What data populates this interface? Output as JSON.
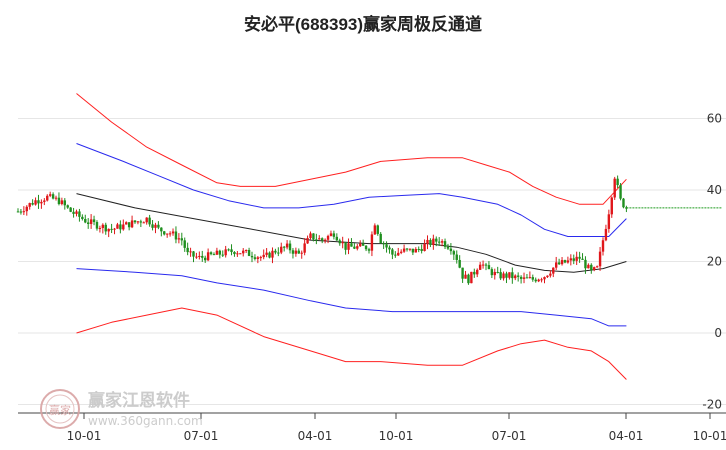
{
  "chart_data": {
    "type": "candlestick_with_channel",
    "title": "安必平(688393)赢家周极反通道",
    "y_ticks": [
      60,
      40,
      20,
      0,
      -20
    ],
    "ylim": [
      -20,
      60
    ],
    "x_ticks": [
      "10-01",
      "07-01",
      "04-01",
      "10-01",
      "07-01",
      "04-01",
      "10-01"
    ],
    "grid": "horizontal",
    "colors": {
      "up": "#e0161a",
      "down": "#1f8f1f",
      "outer_band": "#ff2020",
      "inner_band": "#2a2aee",
      "middle_line": "#222222",
      "last_price_line": "#1f9a1f",
      "watermark": "#c7c7c7"
    },
    "last_price": 35,
    "price_path": [
      [
        0,
        34
      ],
      [
        3,
        37
      ],
      [
        5,
        38
      ],
      [
        7,
        37
      ],
      [
        9,
        34
      ],
      [
        12,
        31
      ],
      [
        16,
        29
      ],
      [
        18,
        30
      ],
      [
        20,
        31
      ],
      [
        22,
        32
      ],
      [
        24,
        29
      ],
      [
        26,
        28
      ],
      [
        28,
        26
      ],
      [
        29,
        22
      ],
      [
        31,
        21
      ],
      [
        34,
        22
      ],
      [
        37,
        23
      ],
      [
        40,
        22
      ],
      [
        42,
        21
      ],
      [
        44,
        23
      ],
      [
        46,
        24
      ],
      [
        48,
        22
      ],
      [
        50,
        27
      ],
      [
        52,
        26
      ],
      [
        54,
        28
      ],
      [
        56,
        24
      ],
      [
        58,
        24
      ],
      [
        60,
        24
      ],
      [
        61,
        31
      ],
      [
        62,
        26
      ],
      [
        64,
        22
      ],
      [
        66,
        23
      ],
      [
        68,
        23
      ],
      [
        70,
        25
      ],
      [
        72,
        26
      ],
      [
        74,
        24
      ],
      [
        75,
        21
      ],
      [
        76,
        16
      ],
      [
        77,
        15
      ],
      [
        78,
        17
      ],
      [
        79,
        20
      ],
      [
        80,
        18
      ],
      [
        81,
        17
      ],
      [
        82,
        16
      ],
      [
        84,
        16
      ],
      [
        86,
        15
      ],
      [
        88,
        15
      ],
      [
        90,
        16
      ],
      [
        92,
        19
      ],
      [
        94,
        20
      ],
      [
        96,
        21
      ],
      [
        97,
        19
      ],
      [
        98,
        17
      ],
      [
        99,
        18
      ],
      [
        100,
        26
      ],
      [
        101,
        34
      ],
      [
        102,
        44
      ],
      [
        103,
        37
      ],
      [
        104,
        35
      ]
    ],
    "middle_line": [
      [
        10,
        39
      ],
      [
        20,
        35
      ],
      [
        30,
        32
      ],
      [
        40,
        29
      ],
      [
        50,
        26
      ],
      [
        60,
        25
      ],
      [
        70,
        25
      ],
      [
        75,
        24
      ],
      [
        80,
        22
      ],
      [
        85,
        19
      ],
      [
        90,
        17.5
      ],
      [
        95,
        17
      ],
      [
        100,
        18
      ],
      [
        104,
        20
      ]
    ],
    "inner_band_upper": [
      [
        10,
        53
      ],
      [
        18,
        48
      ],
      [
        24,
        44
      ],
      [
        30,
        40
      ],
      [
        36,
        37
      ],
      [
        42,
        35
      ],
      [
        48,
        35
      ],
      [
        54,
        36
      ],
      [
        60,
        38
      ],
      [
        66,
        38.5
      ],
      [
        72,
        39
      ],
      [
        76,
        38
      ],
      [
        82,
        36
      ],
      [
        86,
        33
      ],
      [
        90,
        29
      ],
      [
        94,
        27
      ],
      [
        98,
        27
      ],
      [
        101,
        27
      ],
      [
        104,
        32
      ]
    ],
    "inner_band_lower": [
      [
        10,
        18
      ],
      [
        20,
        17
      ],
      [
        28,
        16
      ],
      [
        34,
        14
      ],
      [
        42,
        12
      ],
      [
        50,
        9
      ],
      [
        56,
        7
      ],
      [
        64,
        6
      ],
      [
        72,
        6
      ],
      [
        78,
        6
      ],
      [
        86,
        6
      ],
      [
        92,
        5
      ],
      [
        98,
        4
      ],
      [
        101,
        2
      ],
      [
        104,
        2
      ]
    ],
    "outer_band_upper": [
      [
        10,
        67
      ],
      [
        16,
        59
      ],
      [
        22,
        52
      ],
      [
        28,
        47
      ],
      [
        34,
        42
      ],
      [
        38,
        41
      ],
      [
        44,
        41
      ],
      [
        50,
        43
      ],
      [
        56,
        45
      ],
      [
        62,
        48
      ],
      [
        70,
        49
      ],
      [
        76,
        49
      ],
      [
        80,
        47
      ],
      [
        84,
        45
      ],
      [
        88,
        41
      ],
      [
        92,
        38
      ],
      [
        96,
        36
      ],
      [
        100,
        36
      ],
      [
        104,
        43
      ]
    ],
    "outer_band_lower": [
      [
        10,
        0
      ],
      [
        16,
        3
      ],
      [
        22,
        5
      ],
      [
        28,
        7
      ],
      [
        34,
        5
      ],
      [
        42,
        -1
      ],
      [
        50,
        -5
      ],
      [
        56,
        -8
      ],
      [
        62,
        -8
      ],
      [
        70,
        -9
      ],
      [
        76,
        -9
      ],
      [
        82,
        -5
      ],
      [
        86,
        -3
      ],
      [
        90,
        -2
      ],
      [
        94,
        -4
      ],
      [
        98,
        -5
      ],
      [
        101,
        -8
      ],
      [
        104,
        -13
      ]
    ]
  },
  "watermark": {
    "logo_text": "赢家",
    "company": "赢家江恩软件",
    "url": "www.360gann.com"
  }
}
